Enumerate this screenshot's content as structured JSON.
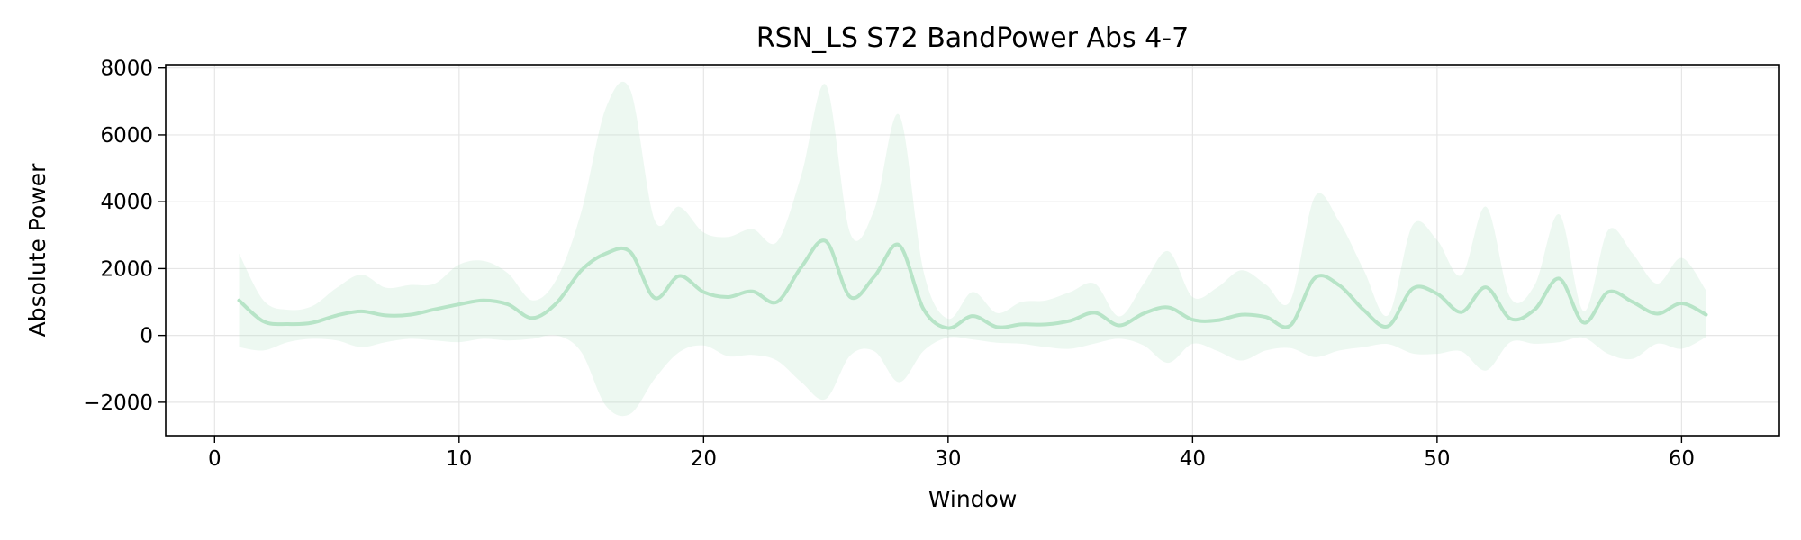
{
  "chart_data": {
    "type": "line",
    "title": "RSN_LS S72 BandPower Abs 4-7",
    "xlabel": "Window",
    "ylabel": "Absolute Power",
    "xlim": [
      -2,
      64
    ],
    "ylim": [
      -3000,
      8100
    ],
    "xticks": [
      0,
      10,
      20,
      30,
      40,
      50,
      60
    ],
    "xtick_labels": [
      "0",
      "10",
      "20",
      "30",
      "40",
      "50",
      "60"
    ],
    "yticks": [
      -2000,
      0,
      2000,
      4000,
      6000,
      8000
    ],
    "ytick_labels": [
      "−2000",
      "0",
      "2000",
      "4000",
      "6000",
      "8000"
    ],
    "grid": true,
    "colors": {
      "line": "#b7e4c7",
      "band": "#b7e4c7"
    },
    "series": [
      {
        "x": [
          1,
          2,
          3,
          4,
          5,
          6,
          7,
          8,
          9,
          10,
          11,
          12,
          13,
          14,
          15,
          16,
          17,
          18,
          19,
          20,
          21,
          22,
          23,
          24,
          25,
          26,
          27,
          28,
          29,
          30,
          31,
          32,
          33,
          34,
          35,
          36,
          37,
          38,
          39,
          40,
          41,
          42,
          43,
          44,
          45,
          46,
          47,
          48,
          49,
          50,
          51,
          52,
          53,
          54,
          55,
          56,
          57,
          58,
          59,
          60,
          61
        ],
        "mean": [
          1050,
          420,
          340,
          380,
          600,
          720,
          600,
          620,
          780,
          930,
          1050,
          930,
          520,
          980,
          1950,
          2450,
          2500,
          1120,
          1780,
          1300,
          1150,
          1320,
          1000,
          2050,
          2820,
          1150,
          1780,
          2700,
          780,
          220,
          580,
          250,
          330,
          330,
          440,
          680,
          300,
          660,
          840,
          470,
          450,
          620,
          550,
          300,
          1720,
          1500,
          760,
          280,
          1400,
          1250,
          700,
          1440,
          500,
          780,
          1700,
          380,
          1300,
          1000,
          650,
          960,
          620
        ],
        "upper": [
          2450,
          1050,
          770,
          880,
          1430,
          1820,
          1430,
          1510,
          1550,
          2120,
          2230,
          1860,
          1050,
          1700,
          3700,
          6800,
          7350,
          3450,
          3850,
          3080,
          2950,
          3180,
          2800,
          4800,
          7500,
          3050,
          3800,
          6600,
          1900,
          500,
          1300,
          670,
          1000,
          1050,
          1300,
          1550,
          570,
          1550,
          2520,
          1150,
          1430,
          1950,
          1520,
          1040,
          4150,
          3400,
          1960,
          610,
          3300,
          2850,
          1800,
          3850,
          1130,
          1520,
          3620,
          720,
          3150,
          2450,
          1550,
          2320,
          1350
        ],
        "lower": [
          -350,
          -450,
          -200,
          -100,
          -150,
          -350,
          -200,
          -100,
          -150,
          -200,
          -100,
          -150,
          -100,
          0,
          -500,
          -2100,
          -2350,
          -1300,
          -500,
          -300,
          -620,
          -580,
          -750,
          -1400,
          -1900,
          -600,
          -480,
          -1400,
          -460,
          -60,
          -120,
          -220,
          -250,
          -350,
          -400,
          -240,
          -100,
          -300,
          -820,
          -250,
          -460,
          -750,
          -450,
          -380,
          -650,
          -450,
          -350,
          -260,
          -540,
          -550,
          -480,
          -1050,
          -200,
          -250,
          -200,
          -70,
          -550,
          -700,
          -250,
          -400,
          -50
        ]
      }
    ]
  }
}
